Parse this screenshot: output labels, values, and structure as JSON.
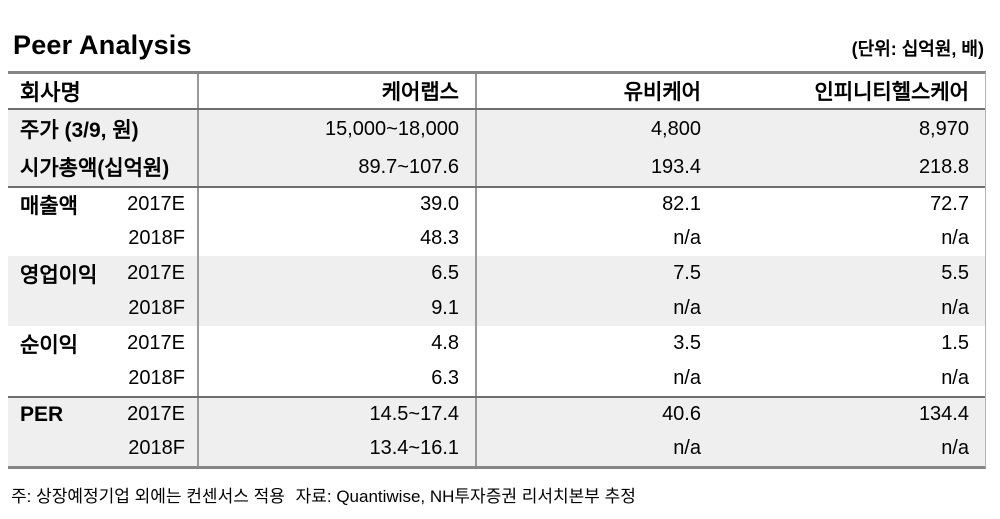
{
  "page": {
    "title": "Peer Analysis",
    "unit_label": "(단위: 십억원, 배)",
    "footnote_note": "주: 상장예정기업 외에는 컨센서스 적용",
    "footnote_source": "자료: Quantiwise, NH투자증권 리서치본부 추정"
  },
  "table": {
    "header": {
      "name_col": "회사명",
      "companies": [
        "케어랩스",
        "유비케어",
        "인피니티헬스케어"
      ]
    },
    "rows": [
      {
        "metric": "주가 (3/9, 원)",
        "year": "",
        "values": [
          "15,000~18,000",
          "4,800",
          "8,970"
        ]
      },
      {
        "metric": "시가총액(십억원)",
        "year": "",
        "values": [
          "89.7~107.6",
          "193.4",
          "218.8"
        ]
      },
      {
        "metric": "매출액",
        "year": "2017E",
        "values": [
          "39.0",
          "82.1",
          "72.7"
        ]
      },
      {
        "metric": "",
        "year": "2018F",
        "values": [
          "48.3",
          "n/a",
          "n/a"
        ]
      },
      {
        "metric": "영업이익",
        "year": "2017E",
        "values": [
          "6.5",
          "7.5",
          "5.5"
        ]
      },
      {
        "metric": "",
        "year": "2018F",
        "values": [
          "9.1",
          "n/a",
          "n/a"
        ]
      },
      {
        "metric": "순이익",
        "year": "2017E",
        "values": [
          "4.8",
          "3.5",
          "1.5"
        ]
      },
      {
        "metric": "",
        "year": "2018F",
        "values": [
          "6.3",
          "n/a",
          "n/a"
        ]
      },
      {
        "metric": "PER",
        "year": "2017E",
        "values": [
          "14.5~17.4",
          "40.6",
          "134.4"
        ]
      },
      {
        "metric": "",
        "year": "2018F",
        "values": [
          "13.4~16.1",
          "n/a",
          "n/a"
        ]
      }
    ]
  },
  "colors": {
    "shaded_row": "#efefef",
    "border_heavy": "#868686",
    "border_rule": "#6e6e6e",
    "border_vertical": "#9a9a9a",
    "text": "#000000"
  }
}
